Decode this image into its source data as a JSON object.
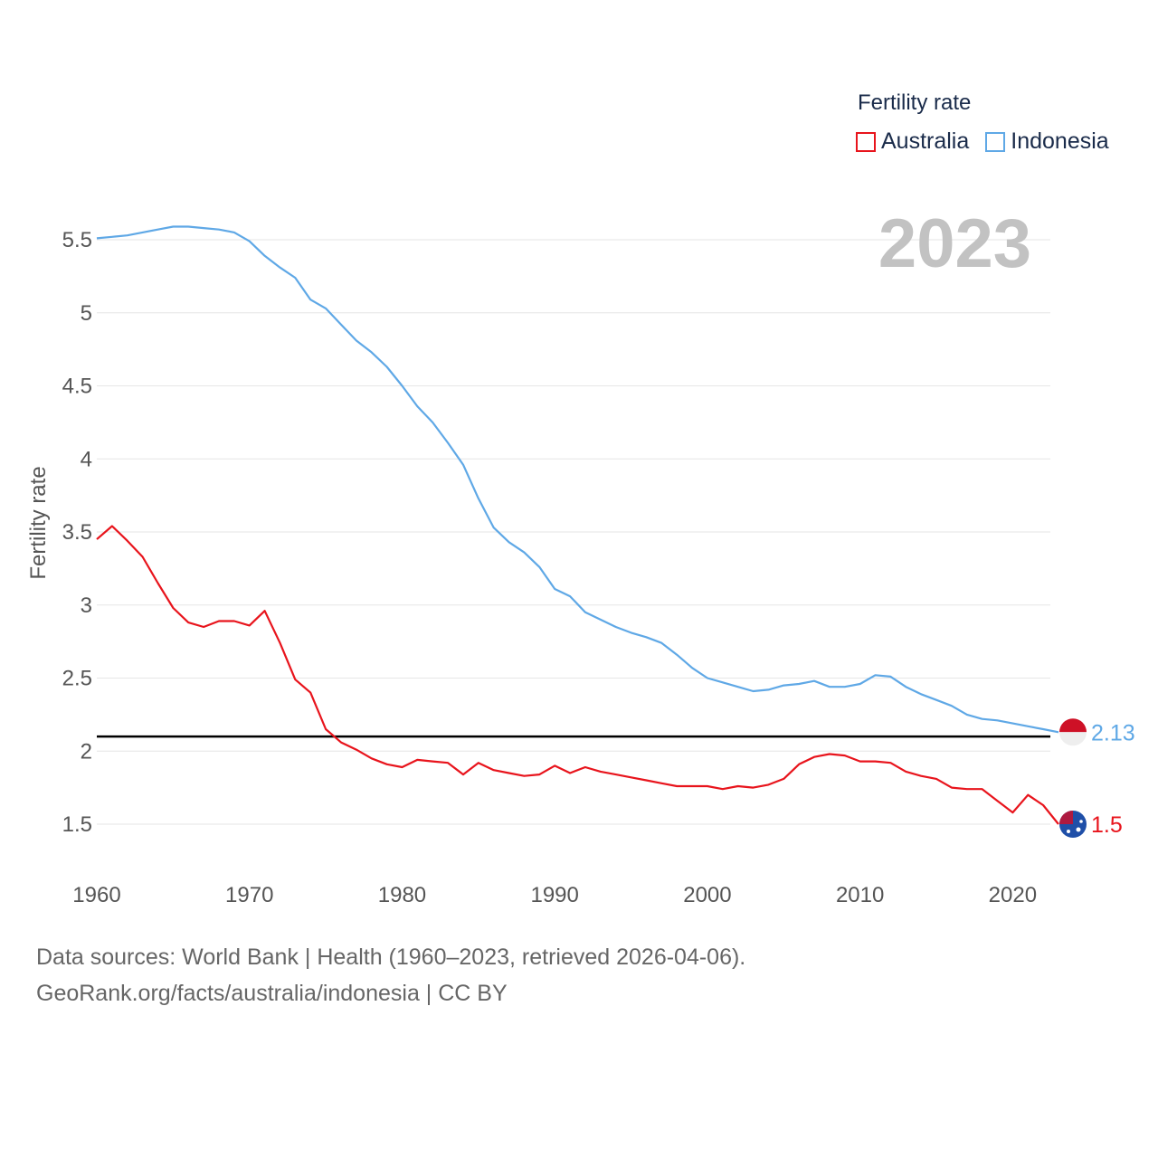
{
  "chart_data": {
    "type": "line",
    "title": "Fertility rate",
    "ylabel": "Fertility rate",
    "xlabel": "",
    "current_year": "2023",
    "xlim": [
      1960,
      2023
    ],
    "ylim": [
      1.2,
      5.65
    ],
    "yticks": [
      1.5,
      2,
      2.5,
      3,
      3.5,
      4,
      4.5,
      5,
      5.5
    ],
    "ytick_labels": [
      "1.5",
      "2",
      "2.5",
      "3",
      "3.5",
      "4",
      "4.5",
      "5",
      "5.5"
    ],
    "xticks": [
      1960,
      1970,
      1980,
      1990,
      2000,
      2010,
      2020
    ],
    "xtick_labels": [
      "1960",
      "1970",
      "1980",
      "1990",
      "2000",
      "2010",
      "2020"
    ],
    "reference_line": 2.1,
    "series": [
      {
        "name": "Australia",
        "color": "#e8141c",
        "end_label": "1.5",
        "x": [
          1960,
          1961,
          1962,
          1963,
          1964,
          1965,
          1966,
          1967,
          1968,
          1969,
          1970,
          1971,
          1972,
          1973,
          1974,
          1975,
          1976,
          1977,
          1978,
          1979,
          1980,
          1981,
          1982,
          1983,
          1984,
          1985,
          1986,
          1987,
          1988,
          1989,
          1990,
          1991,
          1992,
          1993,
          1994,
          1995,
          1996,
          1997,
          1998,
          1999,
          2000,
          2001,
          2002,
          2003,
          2004,
          2005,
          2006,
          2007,
          2008,
          2009,
          2010,
          2011,
          2012,
          2013,
          2014,
          2015,
          2016,
          2017,
          2018,
          2019,
          2020,
          2021,
          2022,
          2023
        ],
        "values": [
          3.45,
          3.54,
          3.44,
          3.33,
          3.15,
          2.98,
          2.88,
          2.85,
          2.89,
          2.89,
          2.86,
          2.96,
          2.74,
          2.49,
          2.4,
          2.15,
          2.06,
          2.01,
          1.95,
          1.91,
          1.89,
          1.94,
          1.93,
          1.92,
          1.84,
          1.92,
          1.87,
          1.85,
          1.83,
          1.84,
          1.9,
          1.85,
          1.89,
          1.86,
          1.84,
          1.82,
          1.8,
          1.78,
          1.76,
          1.76,
          1.76,
          1.74,
          1.76,
          1.75,
          1.77,
          1.81,
          1.91,
          1.96,
          1.98,
          1.97,
          1.93,
          1.93,
          1.92,
          1.86,
          1.83,
          1.81,
          1.75,
          1.74,
          1.74,
          1.66,
          1.58,
          1.7,
          1.63,
          1.5
        ]
      },
      {
        "name": "Indonesia",
        "color": "#5fa8e6",
        "end_label": "2.13",
        "x": [
          1960,
          1961,
          1962,
          1963,
          1964,
          1965,
          1966,
          1967,
          1968,
          1969,
          1970,
          1971,
          1972,
          1973,
          1974,
          1975,
          1976,
          1977,
          1978,
          1979,
          1980,
          1981,
          1982,
          1983,
          1984,
          1985,
          1986,
          1987,
          1988,
          1989,
          1990,
          1991,
          1992,
          1993,
          1994,
          1995,
          1996,
          1997,
          1998,
          1999,
          2000,
          2001,
          2002,
          2003,
          2004,
          2005,
          2006,
          2007,
          2008,
          2009,
          2010,
          2011,
          2012,
          2013,
          2014,
          2015,
          2016,
          2017,
          2018,
          2019,
          2020,
          2021,
          2022,
          2023
        ],
        "values": [
          5.51,
          5.52,
          5.53,
          5.55,
          5.57,
          5.59,
          5.59,
          5.58,
          5.57,
          5.55,
          5.49,
          5.39,
          5.31,
          5.24,
          5.09,
          5.03,
          4.92,
          4.81,
          4.73,
          4.63,
          4.5,
          4.36,
          4.25,
          4.11,
          3.96,
          3.73,
          3.53,
          3.43,
          3.36,
          3.26,
          3.11,
          3.06,
          2.95,
          2.9,
          2.85,
          2.81,
          2.78,
          2.74,
          2.66,
          2.57,
          2.5,
          2.47,
          2.44,
          2.41,
          2.42,
          2.45,
          2.46,
          2.48,
          2.44,
          2.44,
          2.46,
          2.52,
          2.51,
          2.44,
          2.39,
          2.35,
          2.31,
          2.25,
          2.22,
          2.21,
          2.19,
          2.17,
          2.15,
          2.13
        ]
      }
    ]
  },
  "footer": {
    "line1": "Data sources: World Bank | Health (1960–2023, retrieved 2026-04-06).",
    "line2": "GeoRank.org/facts/australia/indonesia | CC BY"
  }
}
